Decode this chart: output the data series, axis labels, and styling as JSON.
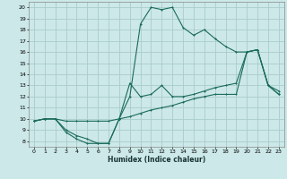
{
  "title": "",
  "xlabel": "Humidex (Indice chaleur)",
  "bg_color": "#cce8e8",
  "grid_color": "#aacccc",
  "line_color": "#1a6b5a",
  "xlim": [
    -0.5,
    23.5
  ],
  "ylim": [
    7.5,
    20.5
  ],
  "xticks": [
    0,
    1,
    2,
    3,
    4,
    5,
    6,
    7,
    8,
    9,
    10,
    11,
    12,
    13,
    14,
    15,
    16,
    17,
    18,
    19,
    20,
    21,
    22,
    23
  ],
  "yticks": [
    8,
    9,
    10,
    11,
    12,
    13,
    14,
    15,
    16,
    17,
    18,
    19,
    20
  ],
  "line1_x": [
    0,
    1,
    2,
    3,
    4,
    5,
    6,
    7,
    8,
    9,
    10,
    11,
    12,
    13,
    14,
    15,
    16,
    17,
    18,
    19,
    20,
    21,
    22,
    23
  ],
  "line1_y": [
    9.8,
    10.0,
    10.0,
    9.0,
    8.5,
    8.2,
    7.8,
    7.8,
    10.0,
    13.2,
    12.0,
    12.2,
    13.0,
    12.0,
    12.0,
    12.2,
    12.5,
    12.8,
    13.0,
    13.2,
    16.0,
    16.2,
    13.0,
    12.2
  ],
  "line2_x": [
    0,
    1,
    2,
    3,
    4,
    5,
    6,
    7,
    8,
    9,
    10,
    11,
    12,
    13,
    14,
    15,
    16,
    17,
    18,
    19,
    20,
    21,
    22,
    23
  ],
  "line2_y": [
    9.8,
    10.0,
    10.0,
    8.8,
    8.2,
    7.8,
    7.8,
    7.8,
    10.0,
    12.0,
    18.5,
    20.0,
    19.8,
    20.0,
    18.2,
    17.5,
    18.0,
    17.2,
    16.5,
    16.0,
    16.0,
    16.2,
    13.0,
    12.2
  ],
  "line3_x": [
    0,
    1,
    2,
    3,
    4,
    5,
    6,
    7,
    8,
    9,
    10,
    11,
    12,
    13,
    14,
    15,
    16,
    17,
    18,
    19,
    20,
    21,
    22,
    23
  ],
  "line3_y": [
    9.8,
    10.0,
    10.0,
    9.8,
    9.8,
    9.8,
    9.8,
    9.8,
    10.0,
    10.2,
    10.5,
    10.8,
    11.0,
    11.2,
    11.5,
    11.8,
    12.0,
    12.2,
    12.2,
    12.2,
    16.0,
    16.2,
    13.0,
    12.5
  ]
}
